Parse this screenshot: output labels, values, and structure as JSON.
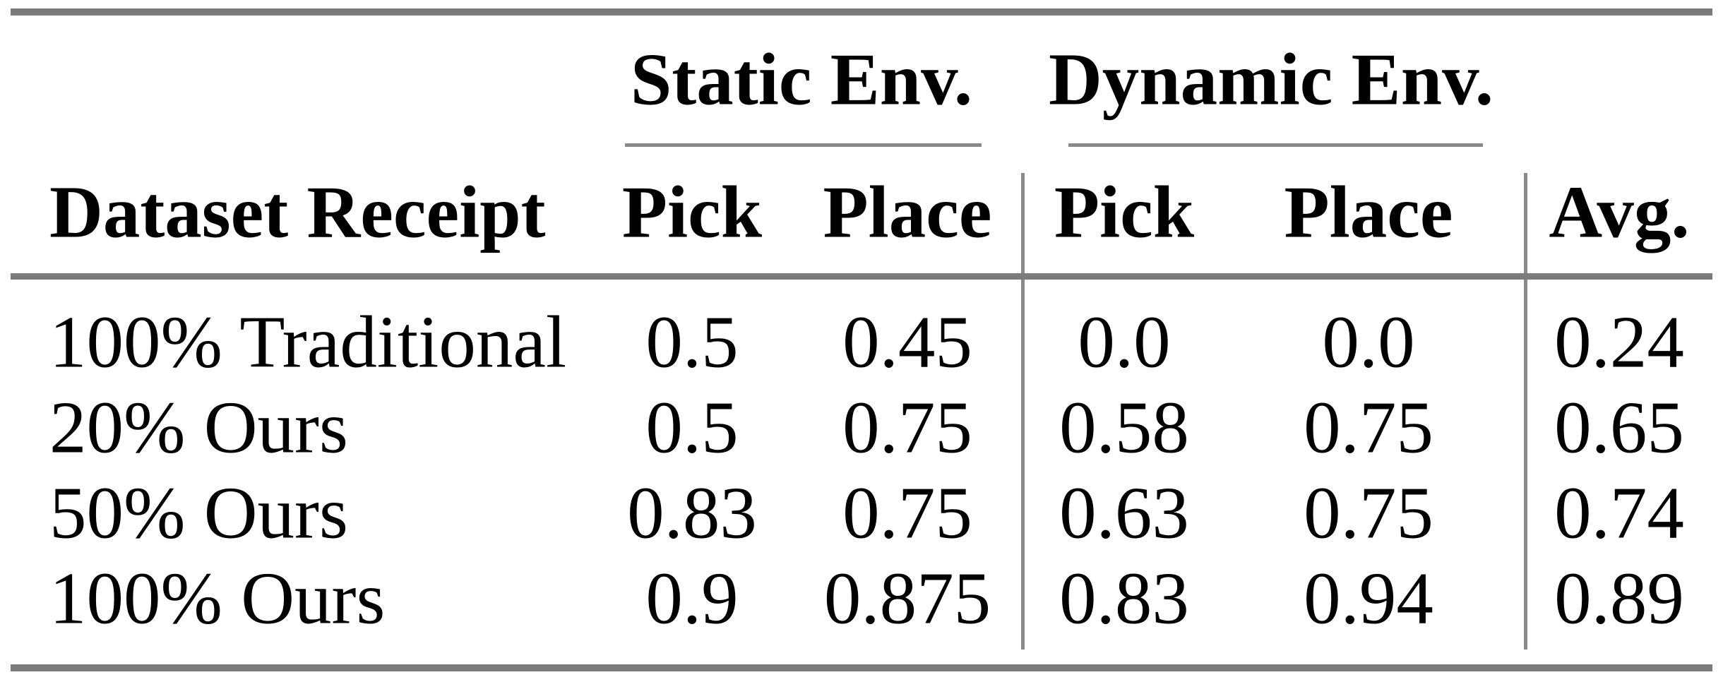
{
  "table": {
    "group_headers": {
      "static": "Static Env.",
      "dynamic": "Dynamic Env."
    },
    "columns": {
      "dataset": "Dataset Receipt",
      "static_pick": "Pick",
      "static_place": "Place",
      "dynamic_pick": "Pick",
      "dynamic_place": "Place",
      "avg": "Avg."
    },
    "rows": [
      {
        "label": "100% Traditional",
        "cells": [
          "0.5",
          "0.45",
          "0.0",
          "0.0",
          "0.24"
        ]
      },
      {
        "label": "20% Ours",
        "cells": [
          "0.5",
          "0.75",
          "0.58",
          "0.75",
          "0.65"
        ]
      },
      {
        "label": "50% Ours",
        "cells": [
          "0.83",
          "0.75",
          "0.63",
          "0.75",
          "0.74"
        ]
      },
      {
        "label": "100% Ours",
        "cells": [
          "0.9",
          "0.875",
          "0.83",
          "0.94",
          "0.89"
        ]
      }
    ]
  },
  "chart_data": {
    "type": "table",
    "column_groups": [
      "Static Env.",
      "Dynamic Env."
    ],
    "columns": [
      "Dataset Receipt",
      "Static Env. Pick",
      "Static Env. Place",
      "Dynamic Env. Pick",
      "Dynamic Env. Place",
      "Avg."
    ],
    "rows": [
      [
        "100% Traditional",
        0.5,
        0.45,
        0.0,
        0.0,
        0.24
      ],
      [
        "20% Ours",
        0.5,
        0.75,
        0.58,
        0.75,
        0.65
      ],
      [
        "50% Ours",
        0.83,
        0.75,
        0.63,
        0.75,
        0.74
      ],
      [
        "100% Ours",
        0.9,
        0.875,
        0.83,
        0.94,
        0.89
      ]
    ]
  },
  "colors": {
    "background": "#ffffff",
    "text": "#000000",
    "rule": "#7b7b7b",
    "thin_rule": "#8a8a8a"
  }
}
